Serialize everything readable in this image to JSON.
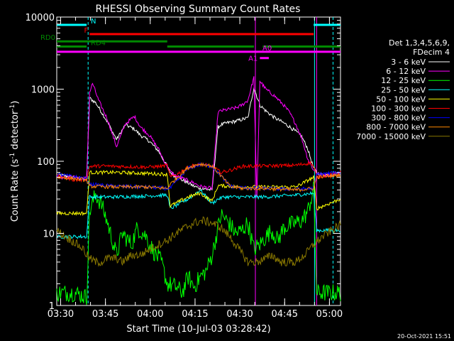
{
  "chart_data": {
    "type": "line",
    "title": "RHESSI Observing Summary Count Rates",
    "xlabel": "Start Time (10-Jul-03 03:28:42)",
    "ylabel": "Count Rate (s⁻¹ detector⁻¹)",
    "ylabel_main": "Count Rate (s",
    "ylabel_sup1": "-1",
    "ylabel_mid": " detector",
    "ylabel_sup2": "-1",
    "ylabel_end": ")",
    "yscale": "log",
    "ylim": [
      1,
      10000
    ],
    "xlim": [
      0,
      95
    ],
    "x_unit": "minutes after 03:28:42",
    "x_ticks": [
      {
        "label": "03:30",
        "x": 1.3
      },
      {
        "label": "03:45",
        "x": 16.3
      },
      {
        "label": "04:00",
        "x": 31.3
      },
      {
        "label": "04:15",
        "x": 46.3
      },
      {
        "label": "04:30",
        "x": 61.3
      },
      {
        "label": "04:45",
        "x": 76.3
      },
      {
        "label": "05:00",
        "x": 91.3
      }
    ],
    "y_ticks": [
      {
        "label": "1",
        "y": 1
      },
      {
        "label": "10",
        "y": 10
      },
      {
        "label": "100",
        "y": 100
      },
      {
        "label": "1000",
        "y": 1000
      },
      {
        "label": "10000",
        "y": 10000
      }
    ],
    "legend_position": "right",
    "legend_title": [
      "Det 1,3,4,5,6,9,",
      "FDecim 4"
    ],
    "series": [
      {
        "name": "3 - 6 keV",
        "color": "#ffffff",
        "x": [
          0,
          6,
          10,
          11,
          13,
          15,
          17,
          20,
          23,
          26,
          28,
          31,
          34,
          36,
          38,
          40,
          42,
          44,
          46,
          48,
          52,
          54,
          55,
          57,
          60,
          62,
          64,
          66,
          68,
          70,
          73,
          76,
          78,
          80,
          82,
          84,
          86,
          87,
          88,
          90,
          92,
          95
        ],
        "y": [
          65,
          60,
          55,
          750,
          650,
          480,
          350,
          200,
          320,
          280,
          230,
          190,
          140,
          100,
          70,
          60,
          55,
          50,
          45,
          42,
          40,
          300,
          320,
          340,
          360,
          380,
          400,
          1050,
          600,
          500,
          400,
          340,
          300,
          260,
          220,
          150,
          80,
          70,
          65,
          65,
          65,
          70
        ]
      },
      {
        "name": "6 - 12 keV",
        "color": "#ff00ff",
        "x": [
          0,
          6,
          10,
          11,
          12,
          14,
          17,
          20,
          23,
          26,
          28,
          31,
          34,
          36,
          38,
          40,
          42,
          44,
          46,
          48,
          52,
          54,
          55,
          57,
          60,
          62,
          64,
          66,
          67,
          68,
          70,
          73,
          76,
          78,
          80,
          82,
          84,
          86,
          87,
          88,
          90,
          92,
          95
        ],
        "y": [
          60,
          60,
          58,
          900,
          1200,
          700,
          380,
          160,
          330,
          420,
          300,
          230,
          150,
          100,
          72,
          62,
          58,
          54,
          50,
          45,
          42,
          480,
          500,
          520,
          550,
          600,
          700,
          1450,
          30,
          1300,
          1000,
          800,
          600,
          470,
          330,
          210,
          110,
          75,
          70,
          65,
          65,
          65,
          70
        ]
      },
      {
        "name": "12 - 25 keV",
        "color": "#00ff00",
        "x": [
          0,
          6,
          10,
          11,
          13,
          15,
          17,
          20,
          22,
          25,
          27,
          30,
          32,
          35,
          37,
          40,
          42,
          44,
          46,
          48,
          50,
          52,
          54,
          55,
          57,
          60,
          62,
          64,
          66,
          68,
          70,
          72,
          74,
          76,
          78,
          80,
          82,
          84,
          86,
          87,
          88,
          90,
          92,
          95
        ],
        "y": [
          1.5,
          1.5,
          1.3,
          20,
          35,
          25,
          14,
          5,
          10,
          7,
          12,
          9,
          6,
          4,
          2,
          1.8,
          1.5,
          2.5,
          1.8,
          2.5,
          3,
          5,
          12,
          18,
          15,
          10,
          11,
          14,
          6,
          7,
          9,
          11,
          8,
          12,
          13,
          14,
          15,
          20,
          40,
          1.5,
          1.5,
          1.5,
          1.5,
          1.5
        ]
      },
      {
        "name": "25 - 50 keV",
        "color": "#00ffff",
        "x": [
          0,
          10,
          11,
          20,
          30,
          37,
          38,
          44,
          48,
          52,
          54,
          56,
          62,
          70,
          80,
          86,
          87,
          95
        ],
        "y": [
          9,
          9,
          32,
          32,
          33,
          34,
          22,
          30,
          40,
          26,
          30,
          32,
          32,
          32,
          34,
          36,
          11,
          11
        ]
      },
      {
        "name": "50 - 100 keV",
        "color": "#ffff00",
        "x": [
          0,
          10,
          11,
          20,
          30,
          37,
          38,
          44,
          48,
          52,
          54,
          58,
          62,
          70,
          80,
          86,
          87,
          95
        ],
        "y": [
          19,
          19,
          70,
          70,
          68,
          66,
          24,
          32,
          36,
          28,
          46,
          45,
          44,
          44,
          44,
          60,
          22,
          30
        ]
      },
      {
        "name": "100 - 300 keV",
        "color": "#ff0000",
        "x": [
          0,
          2,
          4,
          6,
          8,
          10,
          11,
          15,
          20,
          25,
          30,
          35,
          37,
          38,
          40,
          43,
          46,
          49,
          52,
          55,
          58,
          62,
          66,
          70,
          75,
          80,
          85,
          86,
          87,
          89,
          92,
          95
        ],
        "y": [
          62,
          60,
          58,
          55,
          55,
          56,
          85,
          86,
          85,
          84,
          83,
          85,
          88,
          60,
          65,
          78,
          88,
          90,
          85,
          70,
          75,
          85,
          86,
          86,
          87,
          88,
          95,
          85,
          60,
          62,
          65,
          70
        ]
      },
      {
        "name": "300 - 800 keV",
        "color": "#0000ff",
        "x": [
          0,
          5,
          10,
          11,
          20,
          30,
          37,
          38,
          44,
          48,
          52,
          54,
          58,
          62,
          70,
          80,
          86,
          87,
          95
        ],
        "y": [
          66,
          62,
          57,
          48,
          45,
          44,
          42,
          42,
          80,
          90,
          85,
          70,
          45,
          43,
          42,
          41,
          42,
          66,
          70
        ]
      },
      {
        "name": "800 - 7000 keV",
        "color": "#ff8800",
        "x": [
          0,
          5,
          10,
          11,
          20,
          30,
          37,
          38,
          44,
          48,
          52,
          54,
          58,
          62,
          70,
          80,
          86,
          87,
          95
        ],
        "y": [
          60,
          58,
          55,
          45,
          44,
          44,
          42,
          48,
          82,
          92,
          86,
          70,
          45,
          42,
          42,
          40,
          42,
          60,
          65
        ]
      },
      {
        "name": "7000 - 15000 keV",
        "color": "#887700",
        "x": [
          0,
          3,
          6,
          9,
          10,
          11,
          13,
          15,
          17,
          20,
          22,
          25,
          28,
          31,
          34,
          37,
          40,
          43,
          46,
          49,
          52,
          55,
          58,
          61,
          64,
          67,
          70,
          72,
          75,
          77,
          80,
          83,
          86,
          89,
          92,
          95
        ],
        "y": [
          11,
          9,
          7.5,
          6,
          5,
          4.5,
          4,
          4,
          4.5,
          4.5,
          4,
          5,
          5,
          6,
          7,
          8,
          10,
          12,
          14,
          15,
          14,
          12,
          9,
          6,
          4,
          4,
          4.5,
          5,
          4,
          4,
          4,
          5,
          7,
          9,
          11,
          13
        ]
      }
    ],
    "state_bars": [
      {
        "name": "N",
        "color": "#00ffff",
        "y": 7800,
        "segments": [
          [
            0,
            10
          ],
          [
            86,
            95
          ]
        ]
      },
      {
        "name": "F",
        "color": "#ff0000",
        "y": 5800,
        "segments": [
          [
            11,
            86
          ]
        ]
      },
      {
        "name": "RD0",
        "color": "#008800",
        "y": 4600,
        "segments": [
          [
            0,
            37
          ]
        ]
      },
      {
        "name": "RD4",
        "color": "#008800",
        "y": 3900,
        "segments": [
          [
            0,
            10
          ],
          [
            37,
            66
          ],
          [
            69,
            95
          ]
        ]
      },
      {
        "name": "A0",
        "color": "#ff00ff",
        "y": 3300,
        "segments": [
          [
            0,
            95
          ]
        ]
      },
      {
        "name": "A1",
        "color": "#ff00ff",
        "y": 2700,
        "segments": [
          [
            68,
            71
          ]
        ]
      }
    ],
    "vlines": [
      {
        "color": "#00ffff",
        "style": "dashed",
        "x": 10.5
      },
      {
        "color": "#00ffff",
        "style": "dashed",
        "x": 92.5
      },
      {
        "color": "#00ffff",
        "style": "solid",
        "x": 86.3
      },
      {
        "color": "#ff00ff",
        "style": "solid",
        "x": 66.5
      },
      {
        "color": "#ff00ff",
        "style": "solid",
        "x": 87.0
      }
    ]
  },
  "footer": {
    "date": "20-Oct-2021 15:51"
  }
}
